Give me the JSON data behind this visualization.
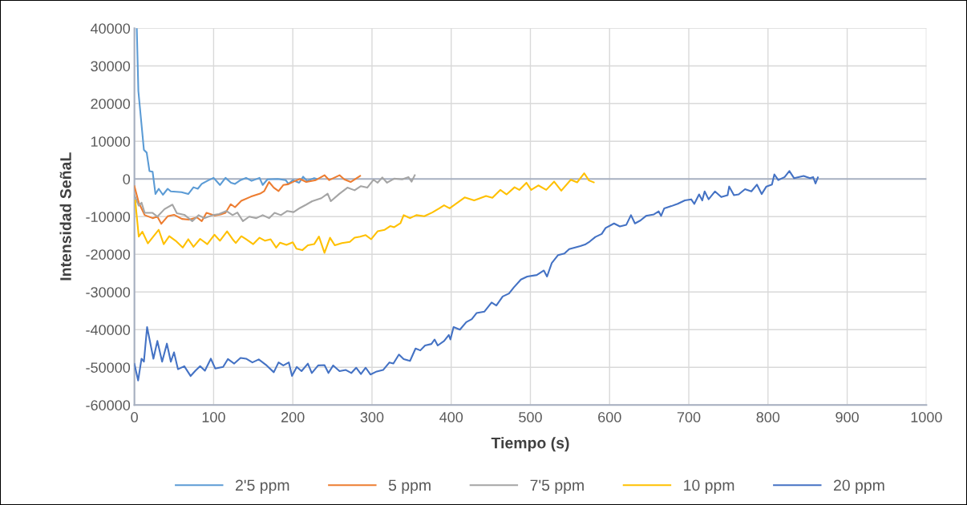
{
  "chart_data": {
    "type": "line",
    "xlabel": "Tiempo (s)",
    "ylabel": "Intensidad SeñaL",
    "xlim": [
      0,
      1000
    ],
    "xticks": [
      0,
      100,
      200,
      300,
      400,
      500,
      600,
      700,
      800,
      900,
      1000
    ],
    "ylim": [
      -60000,
      40000
    ],
    "yticks": [
      -60000,
      -50000,
      -40000,
      -30000,
      -20000,
      -10000,
      0,
      10000,
      20000,
      30000,
      40000
    ],
    "grid": true,
    "legend": "bottom",
    "marker": "none",
    "line_style": "solid",
    "series": [
      {
        "name": "2'5 ppm",
        "color": "#5b9bd5",
        "x": [
          3,
          5,
          12,
          15.5,
          19,
          23,
          26.6,
          30.7,
          36,
          42,
          46,
          59.5,
          68,
          74.6,
          80,
          85,
          93,
          100,
          108,
          115,
          122,
          127,
          134,
          141,
          148,
          158,
          162,
          168,
          181,
          191,
          194.5,
          200,
          208,
          213,
          218,
          227,
          230
        ],
        "values": [
          40000,
          23300,
          7700,
          7000,
          2100,
          1900,
          -4000,
          -2600,
          -4200,
          -2600,
          -3300,
          -3500,
          -4000,
          -2200,
          -2600,
          -1300,
          -400,
          300,
          -1600,
          300,
          -1000,
          -1300,
          -300,
          300,
          -500,
          300,
          -1600,
          -100,
          0,
          -300,
          -1300,
          -300,
          -1000,
          600,
          -500,
          200,
          0
        ]
      },
      {
        "name": "5 ppm",
        "color": "#ed7d31",
        "x": [
          0,
          5.5,
          13,
          23,
          29,
          34,
          42,
          50,
          60,
          69,
          79,
          85,
          91,
          101,
          109,
          115,
          121.6,
          127,
          135,
          147,
          158.7,
          164,
          170,
          176,
          182,
          188,
          194,
          202,
          209,
          217,
          229,
          240,
          246,
          259,
          265,
          273,
          285
        ],
        "values": [
          -1900,
          -6300,
          -9600,
          -10400,
          -10000,
          -11900,
          -9900,
          -9500,
          -10600,
          -10800,
          -10200,
          -11200,
          -9000,
          -9700,
          -9400,
          -9000,
          -6700,
          -7500,
          -5800,
          -4700,
          -3900,
          -3200,
          -800,
          -2300,
          -3200,
          -1600,
          -1400,
          -600,
          0,
          -800,
          -300,
          1000,
          -300,
          1000,
          -100,
          -800,
          800
        ]
      },
      {
        "name": "7'5 ppm",
        "color": "#a5a5a5",
        "x": [
          0,
          5.5,
          9,
          13,
          23,
          29,
          38,
          48,
          53.6,
          63,
          73,
          81,
          88,
          99,
          107,
          116,
          124,
          130,
          137,
          145,
          154,
          162,
          170,
          177,
          185,
          193,
          201,
          209,
          217,
          224.5,
          236,
          244,
          248,
          259,
          269,
          278,
          286,
          294,
          302,
          307,
          313,
          319,
          328,
          338,
          346,
          350,
          354
        ],
        "values": [
          -4300,
          -7100,
          -6300,
          -9000,
          -9000,
          -10000,
          -8000,
          -6800,
          -9100,
          -9500,
          -11200,
          -9600,
          -10400,
          -9600,
          -9300,
          -8500,
          -9600,
          -8900,
          -11200,
          -10000,
          -10400,
          -9600,
          -10400,
          -9000,
          -9600,
          -8500,
          -8800,
          -7700,
          -6800,
          -5900,
          -5100,
          -3900,
          -5900,
          -3900,
          -2300,
          -3000,
          -1900,
          -2300,
          -200,
          -1000,
          400,
          -1000,
          100,
          -100,
          500,
          -700,
          1000
        ]
      },
      {
        "name": "10 ppm",
        "color": "#ffc000",
        "x": [
          1,
          5.5,
          10,
          17,
          30.7,
          37,
          44,
          52,
          61,
          68,
          74.6,
          83,
          92,
          101,
          108,
          117,
          124,
          128,
          135,
          141,
          150,
          158,
          165,
          172,
          179,
          184,
          192,
          200,
          204.6,
          212,
          219,
          227,
          233,
          240,
          247,
          253,
          262,
          272,
          278,
          285,
          292,
          299,
          307,
          316,
          323,
          328,
          336,
          340,
          348,
          356,
          366,
          376,
          385,
          391,
          398,
          417,
          429,
          444,
          452,
          462,
          470,
          480,
          486,
          495,
          501,
          510,
          520,
          530,
          539,
          551,
          559,
          568,
          574,
          580
        ],
        "values": [
          -5700,
          -15300,
          -14000,
          -17100,
          -13500,
          -17300,
          -15200,
          -16400,
          -18200,
          -16000,
          -18000,
          -15900,
          -17300,
          -14800,
          -16400,
          -13900,
          -16000,
          -17000,
          -15200,
          -16000,
          -17300,
          -15600,
          -16400,
          -16000,
          -18200,
          -16900,
          -17500,
          -16800,
          -18500,
          -18900,
          -17600,
          -17300,
          -15300,
          -19600,
          -15600,
          -17600,
          -17000,
          -16700,
          -15600,
          -15300,
          -14900,
          -16000,
          -13900,
          -13500,
          -12500,
          -12800,
          -11700,
          -9600,
          -10400,
          -9600,
          -9900,
          -8900,
          -7800,
          -7000,
          -7800,
          -4900,
          -5700,
          -4500,
          -5000,
          -2900,
          -4100,
          -2200,
          -2900,
          -1000,
          -2900,
          -1700,
          -2900,
          -700,
          -3100,
          -200,
          -900,
          1500,
          -400,
          -900
        ]
      },
      {
        "name": "20 ppm",
        "color": "#4472c4",
        "x": [
          0,
          4.7,
          9,
          12,
          16,
          24,
          29,
          35,
          41,
          46,
          50,
          55,
          63,
          71,
          77,
          83,
          89,
          96.5,
          102,
          112,
          118,
          126,
          134,
          141,
          149,
          157,
          167,
          176,
          182,
          188,
          195,
          199,
          205,
          211,
          219,
          224,
          232,
          240,
          245,
          251,
          259,
          267,
          274,
          280,
          286,
          292,
          298,
          306,
          314,
          322,
          327,
          334,
          340,
          348,
          355,
          361,
          367,
          375,
          379,
          383,
          391,
          397,
          399,
          403,
          411,
          419,
          426,
          432,
          442,
          451,
          457,
          465,
          473,
          479,
          488,
          496,
          508,
          517,
          521,
          527,
          535,
          543,
          549,
          563,
          569,
          575,
          582,
          590,
          595,
          605.6,
          613,
          621,
          627,
          632,
          639,
          646,
          656,
          662,
          665,
          669,
          678,
          686,
          695,
          703,
          707,
          713,
          717,
          720,
          725,
          733,
          741,
          749,
          751,
          757,
          763,
          771,
          779,
          786,
          792,
          798,
          805,
          808,
          813,
          821,
          827,
          833,
          845,
          853,
          857,
          860,
          863
        ],
        "values": [
          -49100,
          -53500,
          -47700,
          -48500,
          -39300,
          -47700,
          -43000,
          -48500,
          -43700,
          -48500,
          -46000,
          -50500,
          -49700,
          -52300,
          -50900,
          -49700,
          -50900,
          -47700,
          -50300,
          -49900,
          -47800,
          -49000,
          -47500,
          -47700,
          -48700,
          -47900,
          -49500,
          -51300,
          -48700,
          -49500,
          -48700,
          -52300,
          -49900,
          -51000,
          -49000,
          -51500,
          -49500,
          -49400,
          -51500,
          -49500,
          -51000,
          -50700,
          -51500,
          -50100,
          -51800,
          -50100,
          -51900,
          -51100,
          -50700,
          -48700,
          -49000,
          -46600,
          -47800,
          -48300,
          -45000,
          -45500,
          -44200,
          -43800,
          -42600,
          -44200,
          -43000,
          -41400,
          -42600,
          -39300,
          -40000,
          -38000,
          -37200,
          -35600,
          -35200,
          -32800,
          -33600,
          -31200,
          -30400,
          -28800,
          -26700,
          -25900,
          -25500,
          -24300,
          -25900,
          -22300,
          -20200,
          -19800,
          -18600,
          -17800,
          -17400,
          -16600,
          -15400,
          -14600,
          -13000,
          -11800,
          -12600,
          -12200,
          -9600,
          -11800,
          -11000,
          -9800,
          -9400,
          -8600,
          -9800,
          -7800,
          -7200,
          -6600,
          -5700,
          -5400,
          -6600,
          -4100,
          -5700,
          -3300,
          -5400,
          -3300,
          -4800,
          -4300,
          -2000,
          -4300,
          -4100,
          -2700,
          -3300,
          -1500,
          -4000,
          -2000,
          -1500,
          1200,
          -300,
          500,
          2100,
          200,
          800,
          200,
          500,
          -1200,
          400
        ]
      }
    ]
  }
}
